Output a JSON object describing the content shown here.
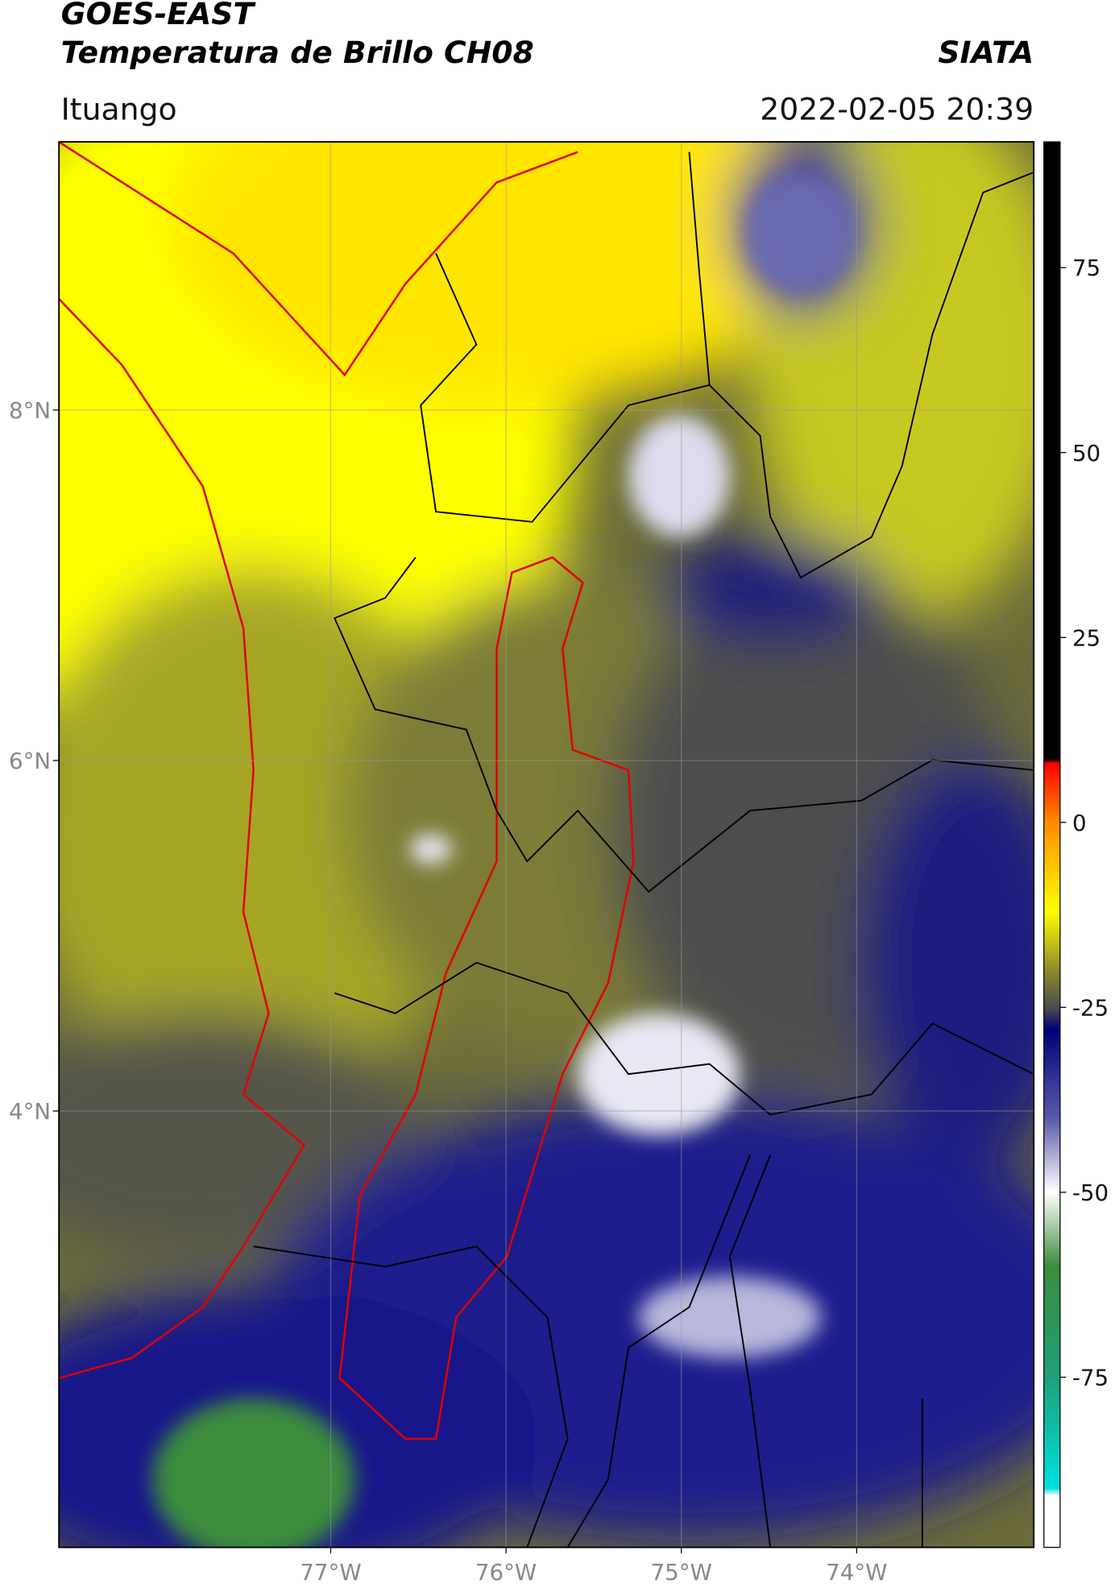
{
  "chart_data": {
    "type": "map",
    "title": "GOES-EAST",
    "subtitle": "Temperatura de Brillo CH08",
    "source": "SIATA",
    "region": "Ituango",
    "date": "2022-02-05 20:39",
    "xlim": [
      -78.55,
      -72.99
    ],
    "ylim": [
      1.51,
      9.53
    ],
    "xticks": [
      {
        "value": -77,
        "label": "77°W"
      },
      {
        "value": -76,
        "label": "76°W"
      },
      {
        "value": -75,
        "label": "75°W"
      },
      {
        "value": -74,
        "label": "74°W"
      }
    ],
    "yticks": [
      {
        "value": 8,
        "label": "8°N"
      },
      {
        "value": 6,
        "label": "6°N"
      },
      {
        "value": 4,
        "label": "4°N"
      }
    ],
    "grid": true,
    "colorbar": {
      "clim": [
        -98,
        92
      ],
      "ticks": [
        75,
        50,
        25,
        0,
        -25,
        -50,
        -75
      ],
      "stops": [
        [
          92,
          "#000000"
        ],
        [
          8.5,
          "#000000"
        ],
        [
          8,
          "#ff0000"
        ],
        [
          0,
          "#ff8c00"
        ],
        [
          -12,
          "#ffff00"
        ],
        [
          -20,
          "#8c8c2a"
        ],
        [
          -25,
          "#4d4d4d"
        ],
        [
          -28,
          "#00007a"
        ],
        [
          -40,
          "#5a5aa8"
        ],
        [
          -50,
          "#ffffff"
        ],
        [
          -60,
          "#3c8c3c"
        ],
        [
          -75,
          "#1fa07a"
        ],
        [
          -90,
          "#00e0e0"
        ],
        [
          -91,
          "#ffffff"
        ],
        [
          -98,
          "#ffffff"
        ]
      ]
    }
  }
}
